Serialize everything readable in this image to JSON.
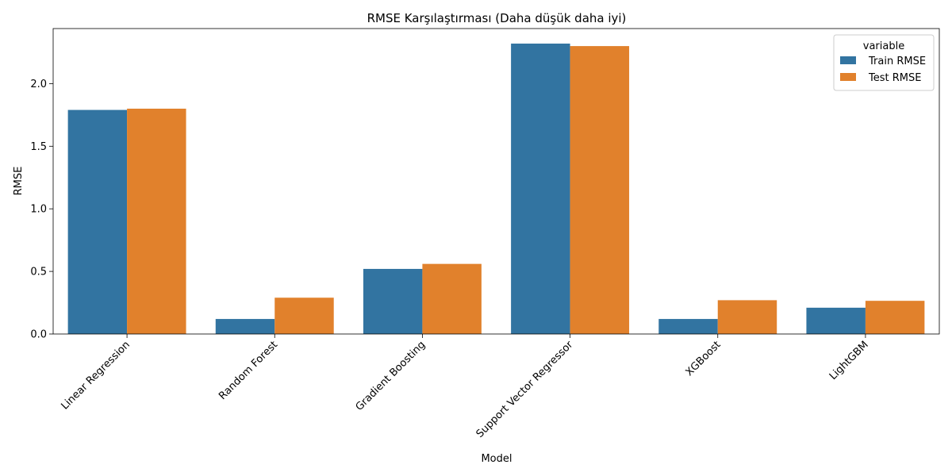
{
  "chart_data": {
    "type": "bar",
    "title": "RMSE Karşılaştırması (Daha düşük daha iyi)",
    "xlabel": "Model",
    "ylabel": "RMSE",
    "categories": [
      "Linear Regression",
      "Random Forest",
      "Gradient Boosting",
      "Support Vector Regressor",
      "XGBoost",
      "LightGBM"
    ],
    "series": [
      {
        "name": "Train RMSE",
        "color": "#3274a1",
        "values": [
          1.79,
          0.12,
          0.52,
          2.32,
          0.12,
          0.21
        ]
      },
      {
        "name": "Test RMSE",
        "color": "#e1812c",
        "values": [
          1.8,
          0.29,
          0.56,
          2.3,
          0.27,
          0.265
        ]
      }
    ],
    "ylim": [
      0,
      2.44
    ],
    "yticks": [
      "0.0",
      "0.5",
      "1.0",
      "1.5",
      "2.0"
    ],
    "legend_title": "variable",
    "legend_position": "top-right",
    "grid": false
  }
}
